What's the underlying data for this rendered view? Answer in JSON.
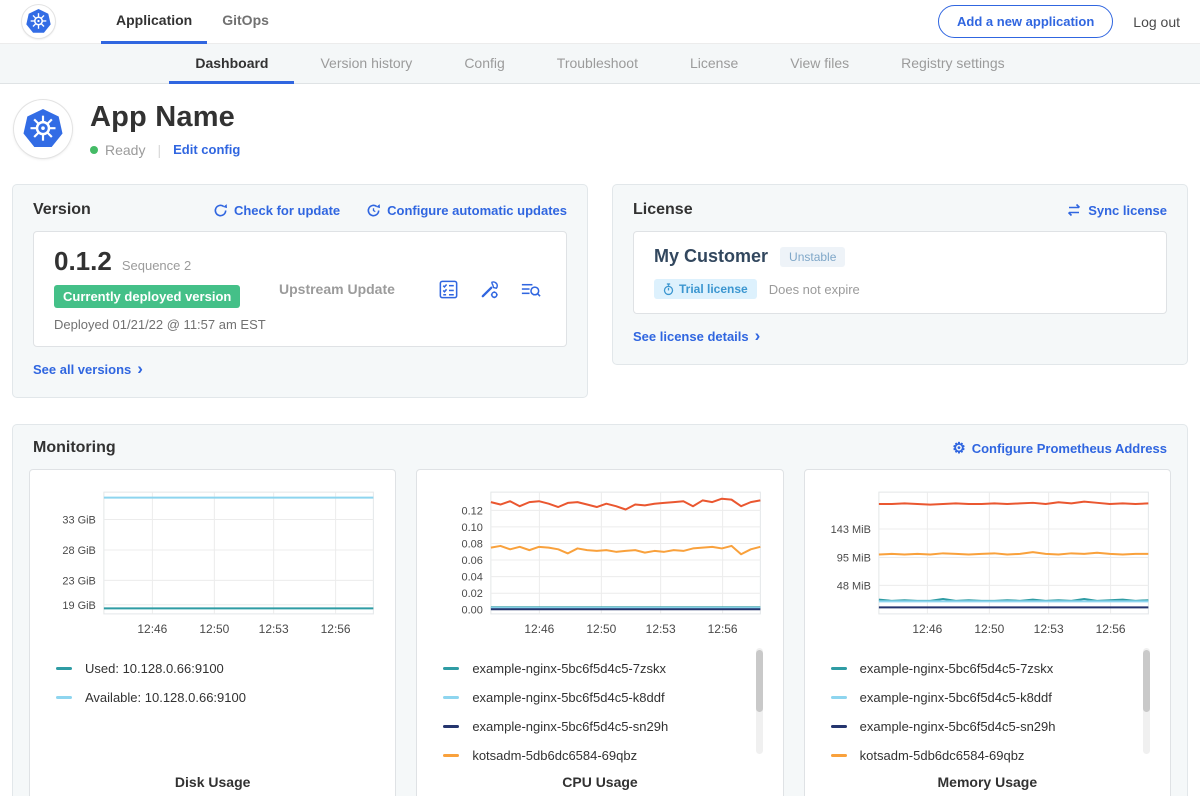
{
  "topnav": {
    "tabs": [
      {
        "label": "Application",
        "active": true
      },
      {
        "label": "GitOps",
        "active": false
      }
    ],
    "add_app_button": "Add a new application",
    "logout": "Log out"
  },
  "subnav": {
    "tabs": [
      {
        "label": "Dashboard",
        "active": true
      },
      {
        "label": "Version history",
        "active": false
      },
      {
        "label": "Config",
        "active": false
      },
      {
        "label": "Troubleshoot",
        "active": false
      },
      {
        "label": "License",
        "active": false
      },
      {
        "label": "View files",
        "active": false
      },
      {
        "label": "Registry settings",
        "active": false
      }
    ]
  },
  "app_header": {
    "name": "App Name",
    "status": "Ready",
    "edit_config": "Edit config"
  },
  "version_card": {
    "title": "Version",
    "check_for_update": "Check for update",
    "configure_auto_updates": "Configure automatic updates",
    "version": "0.1.2",
    "sequence": "Sequence 2",
    "deployed_badge": "Currently deployed version",
    "deployed_at": "Deployed 01/21/22 @ 11:57 am EST",
    "update_type": "Upstream Update",
    "action_icons": [
      "preflight-checks-icon",
      "config-wrench-icon",
      "view-diff-icon"
    ],
    "see_all": "See all versions"
  },
  "license_card": {
    "title": "License",
    "sync": "Sync license",
    "customer": "My Customer",
    "channel_badge": "Unstable",
    "type_badge": "Trial license",
    "expiry": "Does not expire",
    "details": "See license details"
  },
  "monitoring": {
    "title": "Monitoring",
    "configure_link": "Configure Prometheus Address"
  },
  "colors": {
    "accent_blue": "#3066e0",
    "kubernetes_blue": "#326ce5",
    "deployed_badge_green": "#44c088",
    "ready_dot_green": "#44bb66",
    "series_teal": "#2f9ca4",
    "series_light_blue": "#8ed5ef",
    "series_navy": "#25356e",
    "series_orange": "#f9a13c",
    "series_red_orange": "#ea5730"
  },
  "chart_data": [
    {
      "type": "line",
      "title": "Disk Usage",
      "x_ticks": [
        "12:46",
        "12:50",
        "12:53",
        "12:56"
      ],
      "x_tick_pos": [
        0.18,
        0.41,
        0.63,
        0.86
      ],
      "y_ticks": [
        19,
        23,
        28,
        33
      ],
      "y_tick_labels": [
        "19 GiB",
        "23 GiB",
        "28 GiB",
        "33 GiB"
      ],
      "ylim": [
        17.5,
        37.5
      ],
      "legend_scrollbar": false,
      "series": [
        {
          "name": "Used: 10.128.0.66:9100",
          "color": "#2f9ca4",
          "values": [
            18.4,
            18.4,
            18.4,
            18.4,
            18.4,
            18.4,
            18.4,
            18.4,
            18.4,
            18.4
          ]
        },
        {
          "name": "Available: 10.128.0.66:9100",
          "color": "#8ed5ef",
          "values": [
            36.6,
            36.6,
            36.6,
            36.6,
            36.6,
            36.6,
            36.6,
            36.6,
            36.6,
            36.6
          ]
        }
      ]
    },
    {
      "type": "line",
      "title": "CPU Usage",
      "x_ticks": [
        "12:46",
        "12:50",
        "12:53",
        "12:56"
      ],
      "x_tick_pos": [
        0.18,
        0.41,
        0.63,
        0.86
      ],
      "y_ticks": [
        0,
        0.02,
        0.04,
        0.06,
        0.08,
        0.1,
        0.12
      ],
      "y_tick_labels": [
        "0.00",
        "0.02",
        "0.04",
        "0.06",
        "0.08",
        "0.10",
        "0.12"
      ],
      "ylim": [
        -0.005,
        0.142
      ],
      "legend_scrollbar": true,
      "series": [
        {
          "name": "example-nginx-5bc6f5d4c5-7zskx",
          "color": "#2f9ca4",
          "values": [
            0.003,
            0.003,
            0.003,
            0.003,
            0.003,
            0.003,
            0.003,
            0.003,
            0.003,
            0.003
          ]
        },
        {
          "name": "example-nginx-5bc6f5d4c5-k8ddf",
          "color": "#8ed5ef",
          "values": [
            0.002,
            0.002,
            0.002,
            0.002,
            0.002,
            0.002,
            0.002,
            0.002,
            0.002,
            0.002
          ]
        },
        {
          "name": "example-nginx-5bc6f5d4c5-sn29h",
          "color": "#25356e",
          "values": [
            0.0005,
            0.0005,
            0.0005,
            0.0005,
            0.0005,
            0.0005,
            0.0005,
            0.0005,
            0.0005,
            0.0005
          ]
        },
        {
          "name": "kotsadm-5db6dc6584-69qbz",
          "color": "#f9a13c",
          "values": [
            0.075,
            0.077,
            0.073,
            0.076,
            0.072,
            0.076,
            0.075,
            0.073,
            0.068,
            0.074,
            0.072,
            0.071,
            0.072,
            0.07,
            0.071,
            0.072,
            0.069,
            0.071,
            0.07,
            0.072,
            0.071,
            0.074,
            0.075,
            0.076,
            0.074,
            0.077,
            0.067,
            0.073,
            0.076
          ]
        },
        {
          "name": null,
          "color": "#ea5730",
          "values": [
            0.13,
            0.127,
            0.131,
            0.125,
            0.13,
            0.131,
            0.128,
            0.124,
            0.129,
            0.13,
            0.127,
            0.124,
            0.128,
            0.125,
            0.121,
            0.127,
            0.126,
            0.128,
            0.129,
            0.13,
            0.131,
            0.125,
            0.132,
            0.13,
            0.134,
            0.133,
            0.125,
            0.13,
            0.132
          ]
        }
      ]
    },
    {
      "type": "line",
      "title": "Memory Usage",
      "x_ticks": [
        "12:46",
        "12:50",
        "12:53",
        "12:56"
      ],
      "x_tick_pos": [
        0.18,
        0.41,
        0.63,
        0.86
      ],
      "y_ticks": [
        48,
        95,
        143
      ],
      "y_tick_labels": [
        "48 MiB",
        "95 MiB",
        "143 MiB"
      ],
      "ylim": [
        0,
        205
      ],
      "legend_scrollbar": true,
      "series": [
        {
          "name": "example-nginx-5bc6f5d4c5-7zskx",
          "color": "#2f9ca4",
          "values": [
            24,
            22,
            23,
            22,
            22,
            25,
            22,
            23,
            22,
            22,
            23,
            22,
            24,
            22,
            23,
            22,
            25,
            22,
            23,
            24,
            22,
            23
          ]
        },
        {
          "name": "example-nginx-5bc6f5d4c5-k8ddf",
          "color": "#8ed5ef",
          "values": [
            21,
            21,
            21,
            21,
            21,
            21,
            21,
            21,
            21,
            21
          ]
        },
        {
          "name": "example-nginx-5bc6f5d4c5-sn29h",
          "color": "#25356e",
          "values": [
            11,
            11,
            11,
            11,
            11,
            11,
            11,
            11,
            11,
            11
          ]
        },
        {
          "name": "kotsadm-5db6dc6584-69qbz",
          "color": "#f9a13c",
          "values": [
            100,
            101,
            100,
            101,
            100,
            102,
            101,
            100,
            101,
            102,
            100,
            101,
            104,
            101,
            100,
            102,
            101,
            103,
            101,
            100,
            101,
            101
          ]
        },
        {
          "name": null,
          "color": "#ea5730",
          "values": [
            185,
            185,
            186,
            185,
            184,
            185,
            186,
            185,
            185,
            186,
            185,
            186,
            187,
            185,
            188,
            186,
            189,
            187,
            185,
            186,
            185,
            186
          ]
        }
      ]
    }
  ]
}
